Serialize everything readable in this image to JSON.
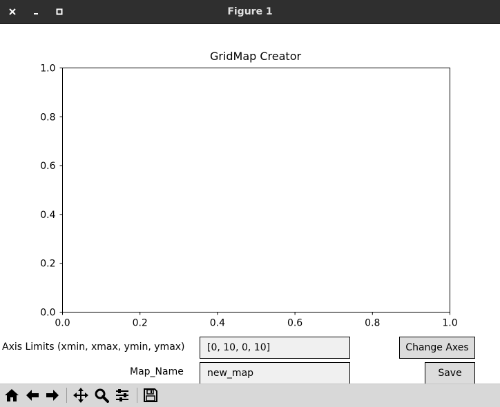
{
  "window": {
    "title": "Figure 1",
    "close_icon": "close-icon",
    "minimize_icon": "minimize-icon",
    "maximize_icon": "maximize-icon"
  },
  "chart_data": {
    "type": "scatter",
    "title": "GridMap Creator",
    "xlabel": "",
    "ylabel": "",
    "xlim": [
      0.0,
      1.0
    ],
    "ylim": [
      0.0,
      1.0
    ],
    "xticks": [
      "0.0",
      "0.2",
      "0.4",
      "0.6",
      "0.8",
      "1.0"
    ],
    "yticks": [
      "0.0",
      "0.2",
      "0.4",
      "0.6",
      "0.8",
      "1.0"
    ],
    "series": [],
    "grid": false
  },
  "controls": {
    "axis_limits_label": "Axis Limits (xmin, xmax, ymin, ymax)",
    "axis_limits_value": "[0, 10, 0, 10]",
    "change_axes_label": "Change Axes",
    "map_name_label": "Map_Name",
    "map_name_value": "new_map",
    "save_label": "Save"
  },
  "toolbar": {
    "icons": [
      "home-icon",
      "back-icon",
      "forward-icon",
      "pan-icon",
      "zoom-icon",
      "configure-subplots-icon",
      "save-icon"
    ]
  }
}
